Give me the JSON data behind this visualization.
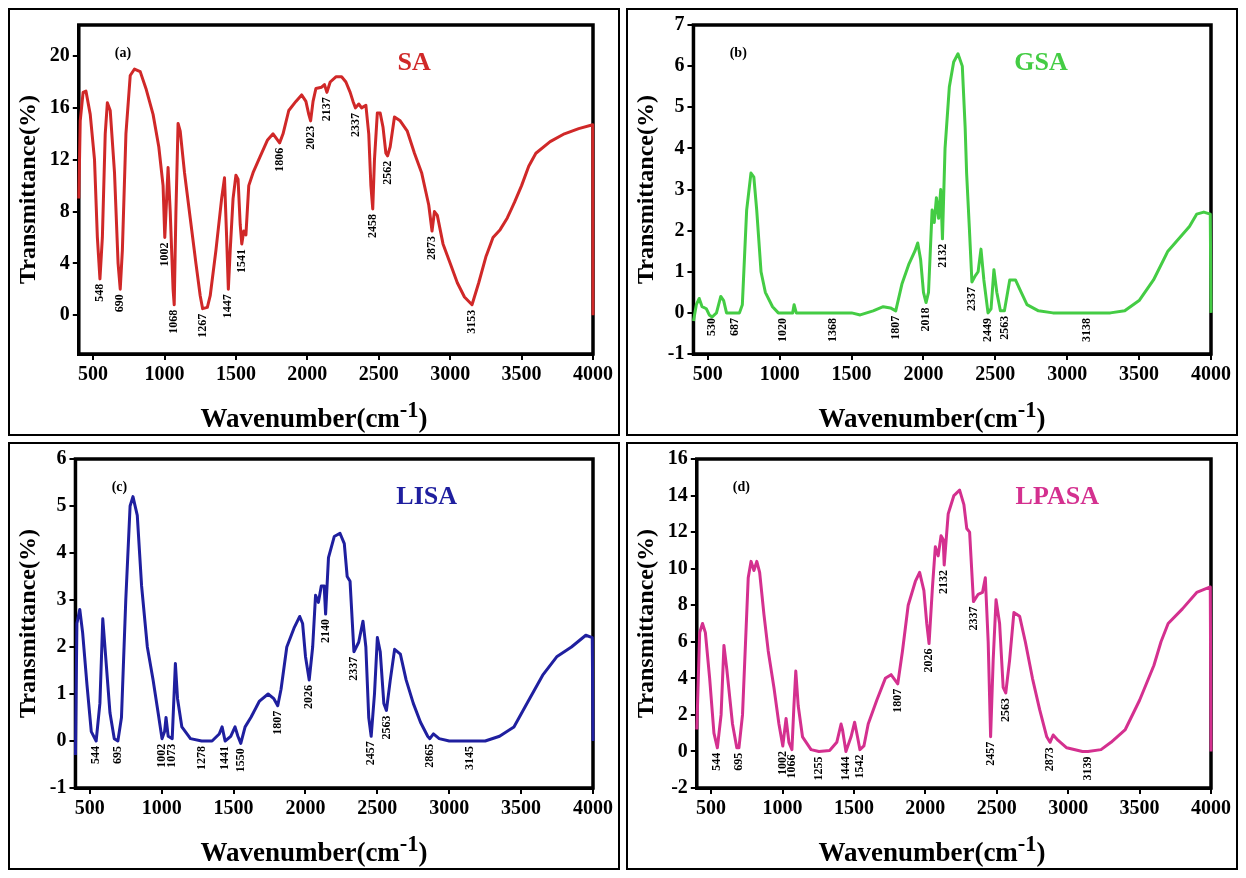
{
  "chart_data": [
    {
      "type": "line",
      "xlabel": "Wavenumber(cm$^{-1}$)",
      "ylabel": "Transmittance(%)",
      "xlim": [
        400,
        4000
      ],
      "xticks": [
        500,
        1000,
        1500,
        2000,
        2500,
        3000,
        3500,
        4000
      ],
      "ylim": [
        -3,
        22.4
      ],
      "yticks": [
        0,
        4,
        8,
        12,
        16,
        20
      ],
      "marker": "none",
      "line_style": "solid",
      "series": [
        {
          "name": "SA",
          "color": "#d02828",
          "x": [
            400,
            410,
            430,
            450,
            480,
            510,
            530,
            548,
            565,
            585,
            600,
            620,
            650,
            675,
            690,
            705,
            730,
            760,
            790,
            830,
            870,
            920,
            960,
            990,
            1002,
            1015,
            1025,
            1040,
            1060,
            1068,
            1080,
            1095,
            1110,
            1140,
            1180,
            1220,
            1250,
            1267,
            1300,
            1320,
            1360,
            1400,
            1420,
            1435,
            1447,
            1460,
            1480,
            1500,
            1515,
            1530,
            1541,
            1555,
            1570,
            1590,
            1620,
            1660,
            1720,
            1760,
            1806,
            1830,
            1870,
            1920,
            1960,
            1990,
            2010,
            2023,
            2040,
            2060,
            2100,
            2120,
            2137,
            2160,
            2200,
            2240,
            2270,
            2300,
            2320,
            2337,
            2360,
            2380,
            2410,
            2430,
            2445,
            2458,
            2470,
            2490,
            2510,
            2530,
            2550,
            2562,
            2580,
            2610,
            2650,
            2700,
            2750,
            2800,
            2850,
            2873,
            2890,
            2910,
            2950,
            3000,
            3050,
            3100,
            3153,
            3200,
            3250,
            3300,
            3350,
            3400,
            3450,
            3500,
            3550,
            3600,
            3700,
            3800,
            3900,
            3998,
            4000
          ],
          "values": [
            9,
            15,
            17.2,
            17.3,
            15.5,
            12,
            6,
            2.8,
            6,
            14,
            16.4,
            15.8,
            11,
            4,
            2,
            5,
            14,
            18.5,
            19,
            18.8,
            17.5,
            15.5,
            13,
            10,
            6,
            9,
            11.4,
            8,
            2,
            0.8,
            8,
            14.8,
            14.2,
            11,
            7.5,
            4,
            1.5,
            0.5,
            0.6,
            1.5,
            5,
            9,
            10.6,
            6,
            2,
            5,
            9,
            10.8,
            10.5,
            7,
            5.5,
            6.5,
            6.2,
            10,
            11,
            12,
            13.5,
            14,
            13.3,
            14,
            15.8,
            16.5,
            17,
            16.5,
            15.5,
            15,
            16.5,
            17.5,
            17.6,
            17.8,
            17.2,
            18,
            18.4,
            18.4,
            18,
            17.2,
            16.5,
            16,
            16.3,
            16,
            16.2,
            14,
            10,
            8.2,
            12,
            15.6,
            15.6,
            14.5,
            12.5,
            12.3,
            13,
            15.3,
            15,
            14.2,
            12.5,
            11,
            8.5,
            6.5,
            8,
            7.7,
            5.5,
            4,
            2.5,
            1.4,
            0.8,
            2.5,
            4.5,
            6,
            6.6,
            7.5,
            8.7,
            10,
            11.5,
            12.5,
            13.4,
            14,
            14.4,
            14.7,
            0
          ]
        }
      ],
      "annotations": [
        "(a)",
        {
          "text": "548",
          "x": 548,
          "y": 2.8
        },
        {
          "text": "690",
          "x": 690,
          "y": 2
        },
        {
          "text": "1002",
          "x": 1002,
          "y": 6
        },
        {
          "text": "1068",
          "x": 1068,
          "y": 0.8
        },
        {
          "text": "1267",
          "x": 1267,
          "y": 0.5
        },
        {
          "text": "1447",
          "x": 1447,
          "y": 2
        },
        {
          "text": "1541",
          "x": 1541,
          "y": 5.5
        },
        {
          "text": "1806",
          "x": 1806,
          "y": 13.3
        },
        {
          "text": "2023",
          "x": 2023,
          "y": 15
        },
        {
          "text": "2137",
          "x": 2137,
          "y": 17.2
        },
        {
          "text": "2337",
          "x": 2337,
          "y": 16
        },
        {
          "text": "2458",
          "x": 2458,
          "y": 8.2
        },
        {
          "text": "2562",
          "x": 2562,
          "y": 12.3
        },
        {
          "text": "2873",
          "x": 2873,
          "y": 6.5
        },
        {
          "text": "3153",
          "x": 3153,
          "y": 0.8
        }
      ]
    },
    {
      "type": "line",
      "xlabel": "Wavenumber(cm$^{-1}$)",
      "ylabel": "Transmittance(%)",
      "xlim": [
        400,
        4000
      ],
      "xticks": [
        500,
        1000,
        1500,
        2000,
        2500,
        3000,
        3500,
        4000
      ],
      "ylim": [
        -1,
        7
      ],
      "yticks": [
        -1,
        0,
        1,
        2,
        3,
        4,
        5,
        6,
        7
      ],
      "marker": "none",
      "line_style": "solid",
      "series": [
        {
          "name": "GSA",
          "color": "#44cc44",
          "x": [
            400,
            420,
            440,
            460,
            490,
            510,
            530,
            560,
            590,
            610,
            630,
            687,
            720,
            740,
            770,
            800,
            820,
            840,
            870,
            900,
            950,
            990,
            1020,
            1060,
            1090,
            1100,
            1115,
            1200,
            1368,
            1500,
            1560,
            1650,
            1720,
            1770,
            1807,
            1850,
            1900,
            1940,
            1960,
            1980,
            2000,
            2018,
            2035,
            2060,
            2075,
            2090,
            2105,
            2120,
            2132,
            2150,
            2180,
            2210,
            2240,
            2270,
            2290,
            2300,
            2320,
            2337,
            2360,
            2380,
            2400,
            2420,
            2449,
            2470,
            2490,
            2510,
            2535,
            2563,
            2600,
            2640,
            2680,
            2720,
            2800,
            2900,
            3000,
            3138,
            3300,
            3400,
            3500,
            3600,
            3700,
            3800,
            3850,
            3900,
            3950,
            3995,
            4000
          ],
          "values": [
            -0.2,
            0.2,
            0.35,
            0.15,
            0.1,
            -0.05,
            -0.1,
            0,
            0.4,
            0.3,
            0,
            0,
            0,
            0.2,
            2.5,
            3.4,
            3.3,
            2.5,
            1,
            0.5,
            0.15,
            0,
            0,
            0,
            0,
            0.2,
            0,
            0,
            0,
            0,
            -0.05,
            0.05,
            0.15,
            0.12,
            0.05,
            0.7,
            1.2,
            1.5,
            1.7,
            1.3,
            0.5,
            0.25,
            0.5,
            2.5,
            2.2,
            2.8,
            2.3,
            3,
            1.8,
            4,
            5.5,
            6.1,
            6.3,
            6,
            4.5,
            3.4,
            2,
            0.75,
            0.9,
            1,
            1.55,
            0.8,
            0,
            0.1,
            1.05,
            0.5,
            0.05,
            0.05,
            0.8,
            0.8,
            0.5,
            0.2,
            0.05,
            0,
            0,
            0,
            0,
            0.05,
            0.3,
            0.8,
            1.5,
            1.9,
            2.1,
            2.4,
            2.45,
            2.4,
            0
          ]
        }
      ],
      "annotations": [
        "(b)",
        {
          "text": "530",
          "x": 530,
          "y": 0
        },
        {
          "text": "687",
          "x": 687,
          "y": 0
        },
        {
          "text": "1020",
          "x": 1020,
          "y": 0
        },
        {
          "text": "1368",
          "x": 1368,
          "y": 0
        },
        {
          "text": "1807",
          "x": 1807,
          "y": 0.05
        },
        {
          "text": "2018",
          "x": 2018,
          "y": 0.25
        },
        {
          "text": "2132",
          "x": 2132,
          "y": 1.8
        },
        {
          "text": "2337",
          "x": 2337,
          "y": 0.75
        },
        {
          "text": "2449",
          "x": 2449,
          "y": 0
        },
        {
          "text": "2563",
          "x": 2563,
          "y": 0.05
        },
        {
          "text": "3138",
          "x": 3138,
          "y": 0
        }
      ]
    },
    {
      "type": "line",
      "xlabel": "Wavenumber(cm$^{-1}$)",
      "ylabel": "Transmittance(%)",
      "xlim": [
        400,
        4000
      ],
      "xticks": [
        500,
        1000,
        1500,
        2000,
        2500,
        3000,
        3500,
        4000
      ],
      "ylim": [
        -1,
        6
      ],
      "yticks": [
        -1,
        0,
        1,
        2,
        3,
        4,
        5,
        6
      ],
      "marker": "none",
      "line_style": "solid",
      "series": [
        {
          "name": "LISA",
          "color": "#1f1f9f",
          "x": [
            400,
            410,
            430,
            450,
            480,
            510,
            544,
            570,
            590,
            610,
            640,
            670,
            695,
            720,
            750,
            780,
            800,
            830,
            860,
            900,
            940,
            975,
            1002,
            1020,
            1030,
            1045,
            1073,
            1095,
            1110,
            1140,
            1200,
            1278,
            1350,
            1400,
            1420,
            1441,
            1480,
            1510,
            1530,
            1550,
            1580,
            1620,
            1680,
            1740,
            1780,
            1807,
            1830,
            1870,
            1920,
            1960,
            1980,
            2000,
            2026,
            2050,
            2070,
            2090,
            2110,
            2130,
            2140,
            2160,
            2200,
            2240,
            2270,
            2290,
            2310,
            2337,
            2370,
            2400,
            2420,
            2440,
            2457,
            2480,
            2500,
            2520,
            2545,
            2563,
            2590,
            2620,
            2660,
            2700,
            2750,
            2800,
            2850,
            2865,
            2890,
            2930,
            3000,
            3145,
            3250,
            3350,
            3450,
            3550,
            3650,
            3750,
            3850,
            3950,
            3995,
            4000
          ],
          "values": [
            -0.3,
            2.5,
            2.8,
            2.3,
            1.2,
            0.2,
            0,
            0.8,
            2.6,
            1.8,
            0.6,
            0.05,
            0,
            0.5,
            3,
            5,
            5.2,
            4.8,
            3.3,
            2,
            1.3,
            0.6,
            0.05,
            0.2,
            0.5,
            0.1,
            0.05,
            1.65,
            0.9,
            0.3,
            0.05,
            0,
            0,
            0.15,
            0.3,
            0,
            0.1,
            0.3,
            0.1,
            -0.05,
            0.3,
            0.5,
            0.85,
            1,
            0.9,
            0.75,
            1.1,
            2,
            2.4,
            2.65,
            2.5,
            1.8,
            1.3,
            2,
            3.1,
            2.95,
            3.3,
            3.3,
            2.7,
            3.9,
            4.35,
            4.42,
            4.2,
            3.5,
            3.4,
            1.9,
            2.1,
            2.55,
            2,
            0.5,
            0.1,
            1,
            2.2,
            1.9,
            0.8,
            0.65,
            1.3,
            1.95,
            1.85,
            1.3,
            0.8,
            0.4,
            0.1,
            0.05,
            0.15,
            0.05,
            0,
            0,
            0,
            0.1,
            0.3,
            0.85,
            1.4,
            1.8,
            2,
            2.25,
            2.2,
            0
          ]
        }
      ],
      "annotations": [
        "(c)",
        {
          "text": "544",
          "x": 544,
          "y": 0
        },
        {
          "text": "695",
          "x": 695,
          "y": 0
        },
        {
          "text": "1002",
          "x": 1002,
          "y": 0.05
        },
        {
          "text": "1073",
          "x": 1073,
          "y": 0.05
        },
        {
          "text": "1278",
          "x": 1278,
          "y": 0
        },
        {
          "text": "1441",
          "x": 1441,
          "y": 0
        },
        {
          "text": "1550",
          "x": 1550,
          "y": -0.05
        },
        {
          "text": "1807",
          "x": 1807,
          "y": 0.75
        },
        {
          "text": "2026",
          "x": 2026,
          "y": 1.3
        },
        {
          "text": "2140",
          "x": 2140,
          "y": 2.7
        },
        {
          "text": "2337",
          "x": 2337,
          "y": 1.9
        },
        {
          "text": "2457",
          "x": 2457,
          "y": 0.1
        },
        {
          "text": "2563",
          "x": 2563,
          "y": 0.65
        },
        {
          "text": "2865",
          "x": 2865,
          "y": 0.05
        },
        {
          "text": "3145",
          "x": 3145,
          "y": 0
        }
      ]
    },
    {
      "type": "line",
      "xlabel": "Wavenumber(cm$^{-1}$)",
      "ylabel": "Transmittance(%)",
      "xlim": [
        400,
        4000
      ],
      "xticks": [
        500,
        1000,
        1500,
        2000,
        2500,
        3000,
        3500,
        4000
      ],
      "ylim": [
        -2,
        16
      ],
      "yticks": [
        -2,
        0,
        2,
        4,
        6,
        8,
        10,
        12,
        14,
        16
      ],
      "marker": "none",
      "line_style": "solid",
      "series": [
        {
          "name": "LPASA",
          "color": "#d4308f",
          "x": [
            400,
            420,
            440,
            460,
            490,
            520,
            544,
            570,
            590,
            610,
            650,
            680,
            695,
            720,
            760,
            780,
            800,
            820,
            840,
            870,
            900,
            940,
            975,
            1002,
            1025,
            1045,
            1066,
            1080,
            1093,
            1110,
            1140,
            1200,
            1255,
            1330,
            1380,
            1410,
            1420,
            1444,
            1480,
            1505,
            1525,
            1542,
            1570,
            1600,
            1660,
            1720,
            1760,
            1807,
            1840,
            1880,
            1930,
            1960,
            1990,
            2010,
            2026,
            2050,
            2070,
            2090,
            2110,
            2125,
            2132,
            2160,
            2200,
            2240,
            2270,
            2290,
            2310,
            2337,
            2370,
            2400,
            2420,
            2440,
            2457,
            2475,
            2495,
            2520,
            2545,
            2563,
            2590,
            2620,
            2660,
            2700,
            2750,
            2800,
            2850,
            2873,
            2895,
            2930,
            2990,
            3100,
            3139,
            3230,
            3300,
            3400,
            3500,
            3600,
            3650,
            3700,
            3800,
            3900,
            3995,
            4000
          ],
          "values": [
            1.2,
            6.5,
            7,
            6.5,
            4,
            1,
            0.2,
            2,
            5.8,
            4.5,
            1.5,
            0.2,
            0.2,
            2,
            9.5,
            10.4,
            9.9,
            10.4,
            9.8,
            7.5,
            5.5,
            3.5,
            1.5,
            0.3,
            1.8,
            0.5,
            0.1,
            2.5,
            4.4,
            2.5,
            0.8,
            0.1,
            0,
            0.05,
            0.5,
            1.5,
            1.2,
            0,
            0.8,
            1.6,
            0.8,
            0.1,
            0.3,
            1.5,
            2.8,
            4,
            4.2,
            3.7,
            5.5,
            8,
            9.3,
            9.8,
            8.8,
            7,
            5.9,
            9,
            11.2,
            10.7,
            11.8,
            11.6,
            10.2,
            13,
            14,
            14.3,
            13.5,
            12.2,
            12,
            8.2,
            8.6,
            8.7,
            9.5,
            6,
            0.8,
            5,
            8.3,
            7,
            3.5,
            3.2,
            5,
            7.6,
            7.4,
            6,
            4,
            2.3,
            0.8,
            0.5,
            0.9,
            0.6,
            0.2,
            0,
            0,
            0.1,
            0.5,
            1.2,
            2.8,
            4.7,
            6,
            7,
            7.8,
            8.7,
            9,
            0
          ]
        }
      ],
      "annotations": [
        "(d)",
        {
          "text": "544",
          "x": 544,
          "y": 0.2
        },
        {
          "text": "695",
          "x": 695,
          "y": 0.2
        },
        {
          "text": "1002",
          "x": 1002,
          "y": 0.3
        },
        {
          "text": "1066",
          "x": 1066,
          "y": 0.1
        },
        {
          "text": "1255",
          "x": 1255,
          "y": 0
        },
        {
          "text": "1444",
          "x": 1444,
          "y": 0
        },
        {
          "text": "1542",
          "x": 1542,
          "y": 0.1
        },
        {
          "text": "1807",
          "x": 1807,
          "y": 3.7
        },
        {
          "text": "2026",
          "x": 2026,
          "y": 5.9
        },
        {
          "text": "2132",
          "x": 2132,
          "y": 10.2
        },
        {
          "text": "2337",
          "x": 2337,
          "y": 8.2
        },
        {
          "text": "2457",
          "x": 2457,
          "y": 0.8
        },
        {
          "text": "2563",
          "x": 2563,
          "y": 3.2
        },
        {
          "text": "2873",
          "x": 2873,
          "y": 0.5
        },
        {
          "text": "3139",
          "x": 3139,
          "y": 0
        }
      ]
    }
  ]
}
